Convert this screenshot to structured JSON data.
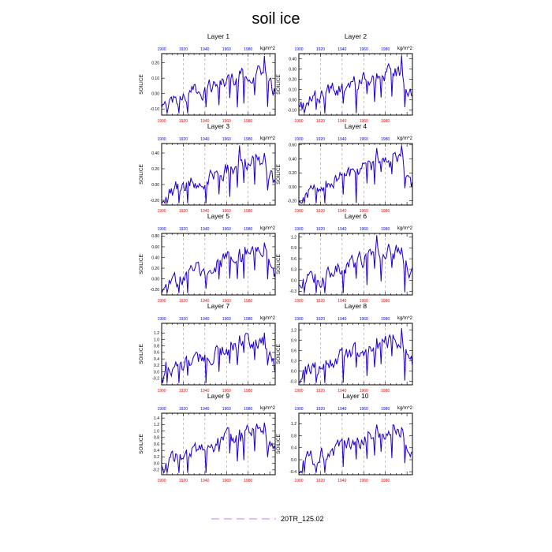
{
  "figure": {
    "title": "soil ice",
    "legend": {
      "label": "20TR_125.02",
      "color": "#cc99ff",
      "style": "dashed"
    },
    "colors": {
      "line": "#2200cc",
      "bottom_ticks": "#ff0000",
      "top_ticks": "#0000ff"
    }
  },
  "chart_data": [
    {
      "type": "line",
      "title": "Layer 1",
      "units": "kg/m^2",
      "ylabel": "SOILICE",
      "xlim": [
        1900,
        2005
      ],
      "ylim": [
        -0.14,
        0.26
      ],
      "yticks": [
        -0.1,
        0.0,
        0.1,
        0.2
      ],
      "yticklabels": [
        "-0.10",
        "0.00",
        "0.10",
        "0.20"
      ],
      "xticks": [
        1900,
        1920,
        1940,
        1960,
        1980
      ],
      "xticklabels": [
        "1900",
        "1920",
        "1940",
        "1960",
        "1980"
      ],
      "grid_x": [
        1920,
        1940,
        1960,
        1980
      ],
      "series": [
        {
          "name": "20TR_125.02",
          "x_start": 1900,
          "x_step": 1,
          "values": []
        }
      ]
    },
    {
      "type": "line",
      "title": "Layer 2",
      "units": "kg/m^2",
      "ylabel": "SOILICE",
      "xlim": [
        1900,
        2005
      ],
      "ylim": [
        -0.15,
        0.45
      ],
      "yticks": [
        -0.1,
        0.0,
        0.1,
        0.2,
        0.3,
        0.4
      ],
      "yticklabels": [
        "-0.10",
        "0.00",
        "0.10",
        "0.20",
        "0.30",
        "0.40"
      ],
      "xticks": [
        1900,
        1920,
        1940,
        1960,
        1980
      ],
      "xticklabels": [
        "1900",
        "1920",
        "1940",
        "1960",
        "1980"
      ],
      "grid_x": [
        1920,
        1940,
        1960,
        1980
      ],
      "series": [
        {
          "name": "20TR_125.02",
          "x_start": 1900,
          "x_step": 1,
          "values": []
        }
      ]
    },
    {
      "type": "line",
      "title": "Layer 3",
      "units": "kg/m^2",
      "ylabel": "SOILICE",
      "xlim": [
        1900,
        2005
      ],
      "ylim": [
        -0.26,
        0.52
      ],
      "yticks": [
        -0.2,
        0.0,
        0.2,
        0.4
      ],
      "yticklabels": [
        "-0.20",
        "0.00",
        "0.20",
        "0.40"
      ],
      "xticks": [
        1900,
        1920,
        1940,
        1960,
        1980
      ],
      "xticklabels": [
        "1900",
        "1920",
        "1940",
        "1960",
        "1980"
      ],
      "grid_x": [
        1920,
        1940,
        1960,
        1980
      ],
      "series": [
        {
          "name": "20TR_125.02",
          "x_start": 1900,
          "x_step": 1,
          "values": []
        }
      ]
    },
    {
      "type": "line",
      "title": "Layer 4",
      "units": "kg/m^2",
      "ylabel": "SOILICE",
      "xlim": [
        1900,
        2005
      ],
      "ylim": [
        -0.26,
        0.62
      ],
      "yticks": [
        -0.2,
        0.0,
        0.2,
        0.4,
        0.6
      ],
      "yticklabels": [
        "-0.20",
        "0.00",
        "0.20",
        "0.40",
        "0.60"
      ],
      "xticks": [
        1900,
        1920,
        1940,
        1960,
        1980
      ],
      "xticklabels": [
        "1900",
        "1920",
        "1940",
        "1960",
        "1980"
      ],
      "grid_x": [
        1920,
        1940,
        1960,
        1980
      ],
      "series": [
        {
          "name": "20TR_125.02",
          "x_start": 1900,
          "x_step": 1,
          "values": []
        }
      ]
    },
    {
      "type": "line",
      "title": "Layer 5",
      "units": "kg/m^2",
      "ylabel": "SOILICE",
      "xlim": [
        1900,
        2005
      ],
      "ylim": [
        -0.3,
        0.85
      ],
      "yticks": [
        -0.2,
        0.0,
        0.2,
        0.4,
        0.6,
        0.8
      ],
      "yticklabels": [
        "-0.20",
        "0.00",
        "0.20",
        "0.40",
        "0.60",
        "0.80"
      ],
      "xticks": [
        1900,
        1920,
        1940,
        1960,
        1980
      ],
      "xticklabels": [
        "1900",
        "1920",
        "1940",
        "1960",
        "1980"
      ],
      "grid_x": [
        1920,
        1940,
        1960,
        1980
      ],
      "series": [
        {
          "name": "20TR_125.02",
          "x_start": 1900,
          "x_step": 1,
          "values": []
        }
      ]
    },
    {
      "type": "line",
      "title": "Layer 6",
      "units": "kg/m^2",
      "ylabel": "SOILICE",
      "xlim": [
        1900,
        2005
      ],
      "ylim": [
        -0.4,
        1.3
      ],
      "yticks": [
        -0.3,
        0.0,
        0.3,
        0.6,
        0.9,
        1.2
      ],
      "yticklabels": [
        "-0.3",
        "0.0",
        "0.3",
        "0.6",
        "0.9",
        "1.2"
      ],
      "xticks": [
        1900,
        1920,
        1940,
        1960,
        1980
      ],
      "xticklabels": [
        "1900",
        "1920",
        "1940",
        "1960",
        "1980"
      ],
      "grid_x": [
        1920,
        1940,
        1960,
        1980
      ],
      "series": [
        {
          "name": "20TR_125.02",
          "x_start": 1900,
          "x_step": 1,
          "values": []
        }
      ]
    },
    {
      "type": "line",
      "title": "Layer 7",
      "units": "kg/m^2",
      "ylabel": "SOILICE",
      "xlim": [
        1900,
        2005
      ],
      "ylim": [
        -0.4,
        1.5
      ],
      "yticks": [
        -0.2,
        0.0,
        0.2,
        0.4,
        0.6,
        0.8,
        1.0,
        1.2
      ],
      "yticklabels": [
        "-0.2",
        "0.0",
        "0.2",
        "0.4",
        "0.6",
        "0.8",
        "1.0",
        "1.2"
      ],
      "xticks": [
        1900,
        1920,
        1940,
        1960,
        1980
      ],
      "xticklabels": [
        "1900",
        "1920",
        "1940",
        "1960",
        "1980"
      ],
      "grid_x": [
        1920,
        1940,
        1960,
        1980
      ],
      "series": [
        {
          "name": "20TR_125.02",
          "x_start": 1900,
          "x_step": 1,
          "values": []
        }
      ]
    },
    {
      "type": "line",
      "title": "Layer 8",
      "units": "kg/m^2",
      "ylabel": "SOILICE",
      "xlim": [
        1900,
        2005
      ],
      "ylim": [
        -0.4,
        1.4
      ],
      "yticks": [
        -0.3,
        0.0,
        0.3,
        0.6,
        0.9,
        1.2
      ],
      "yticklabels": [
        "-0.3",
        "0.0",
        "0.3",
        "0.6",
        "0.9",
        "1.2"
      ],
      "xticks": [
        1900,
        1920,
        1940,
        1960,
        1980
      ],
      "xticklabels": [
        "1900",
        "1920",
        "1940",
        "1960",
        "1980"
      ],
      "grid_x": [
        1920,
        1940,
        1960,
        1980
      ],
      "series": [
        {
          "name": "20TR_125.02",
          "x_start": 1900,
          "x_step": 1,
          "values": []
        }
      ]
    },
    {
      "type": "line",
      "title": "Layer 9",
      "units": "kg/m^2",
      "ylabel": "SOILICE",
      "xlim": [
        1900,
        2005
      ],
      "ylim": [
        -0.35,
        1.55
      ],
      "yticks": [
        -0.2,
        0.0,
        0.2,
        0.4,
        0.6,
        0.8,
        1.0,
        1.2,
        1.4
      ],
      "yticklabels": [
        "-0.2",
        "0.0",
        "0.2",
        "0.4",
        "0.6",
        "0.8",
        "1.0",
        "1.2",
        "1.4"
      ],
      "xticks": [
        1900,
        1920,
        1940,
        1960,
        1980
      ],
      "xticklabels": [
        "1900",
        "1920",
        "1940",
        "1960",
        "1980"
      ],
      "grid_x": [
        1920,
        1940,
        1960,
        1980
      ],
      "series": [
        {
          "name": "20TR_125.02",
          "x_start": 1900,
          "x_step": 1,
          "values": []
        }
      ]
    },
    {
      "type": "line",
      "title": "Layer 10",
      "units": "kg/m^2",
      "ylabel": "SOILICE",
      "xlim": [
        1900,
        2005
      ],
      "ylim": [
        -0.5,
        1.55
      ],
      "yticks": [
        -0.4,
        0.0,
        0.4,
        0.8,
        1.2
      ],
      "yticklabels": [
        "-0.4",
        "0.0",
        "0.4",
        "0.8",
        "1.2"
      ],
      "xticks": [
        1900,
        1920,
        1940,
        1960,
        1980
      ],
      "xticklabels": [
        "1900",
        "1920",
        "1940",
        "1960",
        "1980"
      ],
      "grid_x": [
        1920,
        1940,
        1960,
        1980
      ],
      "series": [
        {
          "name": "20TR_125.02",
          "x_start": 1900,
          "x_step": 1,
          "values": []
        }
      ]
    }
  ]
}
